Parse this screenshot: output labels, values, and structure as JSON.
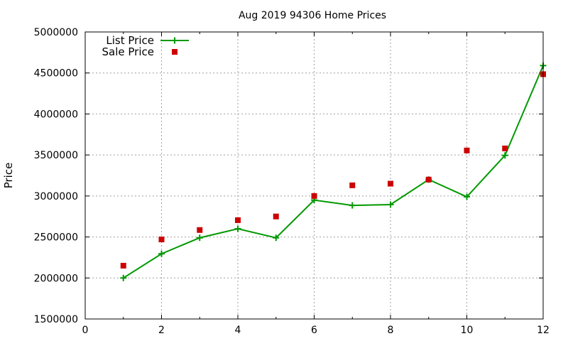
{
  "chart_data": {
    "type": "line",
    "title": "Aug 2019 94306 Home Prices",
    "xlabel": "",
    "ylabel": "Price",
    "xlim": [
      0,
      12
    ],
    "ylim": [
      1500000,
      5000000
    ],
    "xticks": [
      0,
      2,
      4,
      6,
      8,
      10,
      12
    ],
    "yticks": [
      1500000,
      2000000,
      2500000,
      3000000,
      3500000,
      4000000,
      4500000,
      5000000
    ],
    "grid": true,
    "legend_position": "top-left",
    "series": [
      {
        "name": "List Price",
        "style": "line+marker",
        "marker": "plus",
        "color": "#009900",
        "x": [
          1,
          2,
          3,
          4,
          5,
          6,
          7,
          8,
          9,
          10,
          11,
          12
        ],
        "y": [
          2000000,
          2295000,
          2490000,
          2600000,
          2490000,
          2950000,
          2885000,
          2895000,
          3200000,
          2990000,
          3495000,
          4590000
        ]
      },
      {
        "name": "Sale Price",
        "style": "marker",
        "marker": "square",
        "color": "#cc0000",
        "x": [
          1,
          2,
          3,
          4,
          5,
          6,
          7,
          8,
          9,
          10,
          11,
          12
        ],
        "y": [
          2150000,
          2470000,
          2585000,
          2705000,
          2750000,
          3000000,
          3130000,
          3150000,
          3200000,
          3555000,
          3580000,
          4485000
        ]
      }
    ]
  }
}
